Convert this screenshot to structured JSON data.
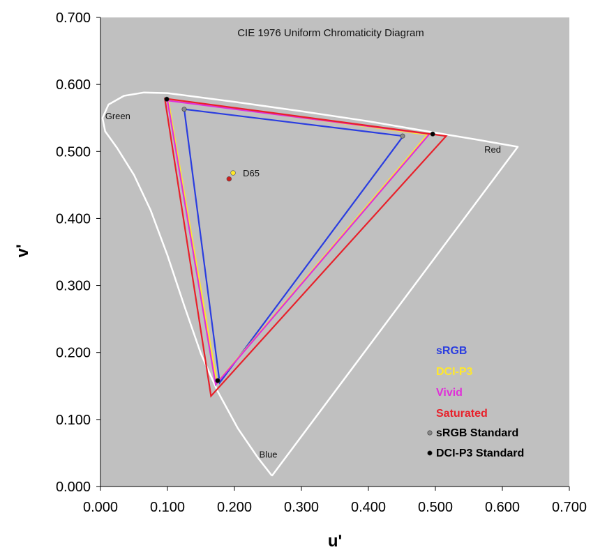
{
  "chart_data": {
    "type": "line",
    "title": "CIE 1976 Uniform Chromaticity Diagram",
    "xlabel": "u'",
    "ylabel": "v'",
    "xlim": [
      0.0,
      0.7
    ],
    "ylim": [
      0.0,
      0.7
    ],
    "xticks": [
      "0.000",
      "0.100",
      "0.200",
      "0.300",
      "0.400",
      "0.500",
      "0.600",
      "0.700"
    ],
    "yticks": [
      "0.000",
      "0.100",
      "0.200",
      "0.300",
      "0.400",
      "0.500",
      "0.600",
      "0.700"
    ],
    "grid": false,
    "legend_position": "bottom-right",
    "background_color": "#c0c0c0",
    "locus": {
      "color": "#ffffff",
      "points": [
        [
          0.256,
          0.016
        ],
        [
          0.235,
          0.043
        ],
        [
          0.205,
          0.087
        ],
        [
          0.175,
          0.142
        ],
        [
          0.15,
          0.198
        ],
        [
          0.125,
          0.27
        ],
        [
          0.1,
          0.345
        ],
        [
          0.075,
          0.412
        ],
        [
          0.05,
          0.465
        ],
        [
          0.025,
          0.505
        ],
        [
          0.007,
          0.53
        ],
        [
          0.003,
          0.55
        ],
        [
          0.012,
          0.57
        ],
        [
          0.035,
          0.583
        ],
        [
          0.065,
          0.588
        ],
        [
          0.1,
          0.587
        ],
        [
          0.2,
          0.574
        ],
        [
          0.3,
          0.56
        ],
        [
          0.4,
          0.545
        ],
        [
          0.5,
          0.528
        ],
        [
          0.56,
          0.518
        ],
        [
          0.623,
          0.507
        ],
        [
          0.256,
          0.016
        ]
      ]
    },
    "region_labels": [
      {
        "text": "Green",
        "u": 0.007,
        "v": 0.548
      },
      {
        "text": "Red",
        "u": 0.573,
        "v": 0.498
      },
      {
        "text": "Blue",
        "u": 0.237,
        "v": 0.043
      }
    ],
    "series": [
      {
        "name": "sRGB",
        "color": "#2a3de0",
        "points": [
          [
            0.125,
            0.563
          ],
          [
            0.452,
            0.523
          ],
          [
            0.178,
            0.155
          ]
        ]
      },
      {
        "name": "DCI-P3",
        "color": "#ffe82a",
        "points": [
          [
            0.101,
            0.577
          ],
          [
            0.488,
            0.525
          ],
          [
            0.174,
            0.155
          ]
        ]
      },
      {
        "name": "Vivid",
        "color": "#e030d8",
        "points": [
          [
            0.1,
            0.576
          ],
          [
            0.491,
            0.526
          ],
          [
            0.172,
            0.152
          ]
        ]
      },
      {
        "name": "Saturated",
        "color": "#e8202a",
        "points": [
          [
            0.096,
            0.579
          ],
          [
            0.516,
            0.523
          ],
          [
            0.165,
            0.135
          ]
        ]
      }
    ],
    "markers": [
      {
        "name": "sRGB Standard",
        "color": "#8a8a8a",
        "points": [
          [
            0.125,
            0.563
          ],
          [
            0.451,
            0.523
          ],
          [
            0.175,
            0.158
          ]
        ]
      },
      {
        "name": "DCI-P3 Standard",
        "color": "#000000",
        "points": [
          [
            0.099,
            0.578
          ],
          [
            0.496,
            0.526
          ],
          [
            0.175,
            0.158
          ]
        ]
      }
    ],
    "white_point": {
      "label": "D65",
      "points": [
        {
          "u": 0.198,
          "v": 0.468,
          "color": "#ffe82a"
        },
        {
          "u": 0.192,
          "v": 0.459,
          "color": "#cc2020"
        }
      ]
    }
  }
}
